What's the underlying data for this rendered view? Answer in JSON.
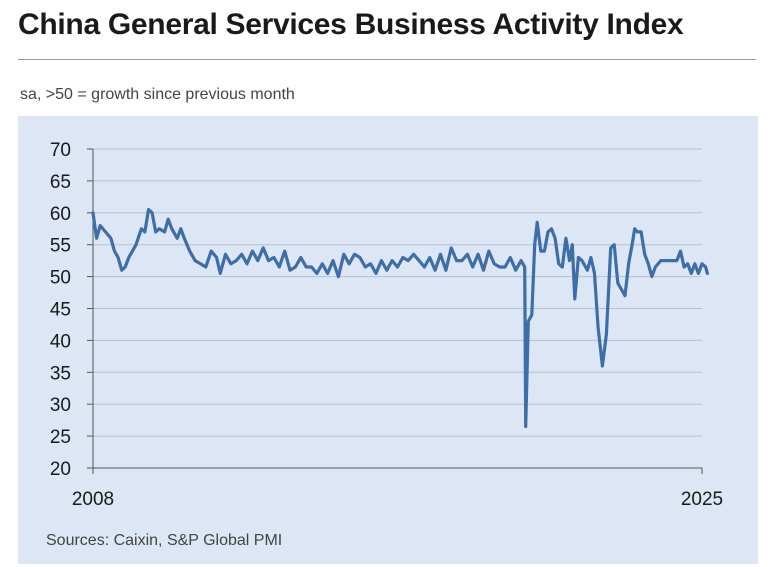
{
  "title": "China General Services Business Activity Index",
  "subtitle": "sa, >50 = growth since previous month",
  "source": "Sources: Caixin, S&P Global PMI",
  "colors": {
    "line": "#3e6ea8",
    "panel": "#dce6f5",
    "grid": "#b4bfd0"
  },
  "chart_data": {
    "type": "line",
    "title": "China General Services Business Activity Index",
    "xlabel": "",
    "ylabel": "",
    "xlim": [
      2008,
      2025
    ],
    "ylim": [
      20,
      70
    ],
    "yticks": [
      20,
      25,
      30,
      35,
      40,
      45,
      50,
      55,
      60,
      65,
      70
    ],
    "xtick_labels": [
      "2008",
      "2025"
    ],
    "grid": "horizontal",
    "series": [
      {
        "name": "Business Activity Index",
        "points": [
          [
            2008.0,
            60
          ],
          [
            2008.1,
            56
          ],
          [
            2008.2,
            58
          ],
          [
            2008.35,
            57
          ],
          [
            2008.5,
            56
          ],
          [
            2008.6,
            54
          ],
          [
            2008.7,
            53
          ],
          [
            2008.8,
            51
          ],
          [
            2008.9,
            51.5
          ],
          [
            2009.0,
            53
          ],
          [
            2009.2,
            55
          ],
          [
            2009.35,
            57.5
          ],
          [
            2009.45,
            57
          ],
          [
            2009.55,
            60.5
          ],
          [
            2009.65,
            60
          ],
          [
            2009.75,
            57
          ],
          [
            2009.85,
            57.5
          ],
          [
            2010.0,
            57
          ],
          [
            2010.1,
            59
          ],
          [
            2010.2,
            57.5
          ],
          [
            2010.35,
            56
          ],
          [
            2010.45,
            57.5
          ],
          [
            2010.55,
            56
          ],
          [
            2010.7,
            54
          ],
          [
            2010.85,
            52.5
          ],
          [
            2011.0,
            52
          ],
          [
            2011.15,
            51.5
          ],
          [
            2011.3,
            54
          ],
          [
            2011.45,
            53
          ],
          [
            2011.55,
            50.5
          ],
          [
            2011.7,
            53.5
          ],
          [
            2011.85,
            52
          ],
          [
            2012.0,
            52.5
          ],
          [
            2012.15,
            53.5
          ],
          [
            2012.3,
            52
          ],
          [
            2012.45,
            54
          ],
          [
            2012.6,
            52.5
          ],
          [
            2012.75,
            54.5
          ],
          [
            2012.9,
            52.5
          ],
          [
            2013.05,
            53
          ],
          [
            2013.2,
            51.5
          ],
          [
            2013.35,
            54
          ],
          [
            2013.5,
            51
          ],
          [
            2013.65,
            51.5
          ],
          [
            2013.8,
            53
          ],
          [
            2013.95,
            51.5
          ],
          [
            2014.1,
            51.5
          ],
          [
            2014.25,
            50.5
          ],
          [
            2014.4,
            52
          ],
          [
            2014.55,
            50.5
          ],
          [
            2014.7,
            52.5
          ],
          [
            2014.85,
            50
          ],
          [
            2015.0,
            53.5
          ],
          [
            2015.15,
            52
          ],
          [
            2015.3,
            53.5
          ],
          [
            2015.45,
            53
          ],
          [
            2015.6,
            51.5
          ],
          [
            2015.75,
            52
          ],
          [
            2015.9,
            50.5
          ],
          [
            2016.05,
            52.5
          ],
          [
            2016.2,
            51
          ],
          [
            2016.35,
            52.5
          ],
          [
            2016.5,
            51.5
          ],
          [
            2016.65,
            53
          ],
          [
            2016.8,
            52.5
          ],
          [
            2016.95,
            53.5
          ],
          [
            2017.1,
            52.5
          ],
          [
            2017.25,
            51.5
          ],
          [
            2017.4,
            53
          ],
          [
            2017.55,
            51
          ],
          [
            2017.7,
            53.5
          ],
          [
            2017.85,
            51
          ],
          [
            2018.0,
            54.5
          ],
          [
            2018.15,
            52.5
          ],
          [
            2018.3,
            52.5
          ],
          [
            2018.45,
            53.5
          ],
          [
            2018.6,
            51.5
          ],
          [
            2018.75,
            53.5
          ],
          [
            2018.9,
            51
          ],
          [
            2019.05,
            54
          ],
          [
            2019.2,
            52
          ],
          [
            2019.35,
            51.5
          ],
          [
            2019.5,
            51.5
          ],
          [
            2019.65,
            53
          ],
          [
            2019.8,
            51
          ],
          [
            2019.95,
            52.5
          ],
          [
            2020.05,
            51.5
          ],
          [
            2020.08,
            26.5
          ],
          [
            2020.15,
            43
          ],
          [
            2020.25,
            44
          ],
          [
            2020.33,
            55
          ],
          [
            2020.4,
            58.5
          ],
          [
            2020.5,
            54
          ],
          [
            2020.6,
            54
          ],
          [
            2020.7,
            57
          ],
          [
            2020.8,
            57.5
          ],
          [
            2020.9,
            56
          ],
          [
            2021.0,
            52
          ],
          [
            2021.1,
            51.5
          ],
          [
            2021.2,
            56
          ],
          [
            2021.3,
            52.5
          ],
          [
            2021.38,
            55
          ],
          [
            2021.45,
            46.5
          ],
          [
            2021.55,
            53
          ],
          [
            2021.65,
            52.5
          ],
          [
            2021.8,
            51
          ],
          [
            2021.9,
            53
          ],
          [
            2022.0,
            50.5
          ],
          [
            2022.1,
            42
          ],
          [
            2022.22,
            36
          ],
          [
            2022.33,
            41
          ],
          [
            2022.45,
            54.5
          ],
          [
            2022.55,
            55
          ],
          [
            2022.65,
            49
          ],
          [
            2022.75,
            48
          ],
          [
            2022.85,
            47
          ],
          [
            2022.95,
            52
          ],
          [
            2023.05,
            55
          ],
          [
            2023.12,
            57.5
          ],
          [
            2023.2,
            57
          ],
          [
            2023.3,
            57
          ],
          [
            2023.4,
            53.5
          ],
          [
            2023.5,
            52
          ],
          [
            2023.6,
            50
          ],
          [
            2023.7,
            51.5
          ],
          [
            2023.85,
            52.5
          ],
          [
            2024.0,
            52.5
          ],
          [
            2024.15,
            52.5
          ],
          [
            2024.3,
            52.5
          ],
          [
            2024.4,
            54
          ],
          [
            2024.5,
            51.5
          ],
          [
            2024.6,
            52
          ],
          [
            2024.7,
            50.5
          ],
          [
            2024.8,
            52
          ],
          [
            2024.9,
            50.5
          ],
          [
            2025.0,
            52
          ],
          [
            2025.1,
            51.5
          ],
          [
            2025.15,
            50.5
          ]
        ]
      }
    ]
  }
}
